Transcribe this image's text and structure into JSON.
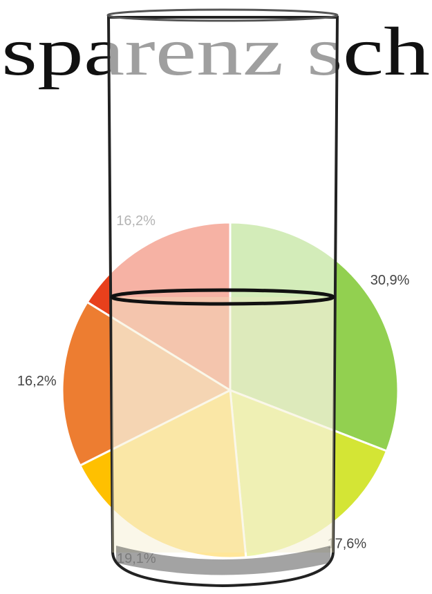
{
  "chart_data": {
    "type": "pie",
    "title": "sparenz sch",
    "values": [
      30.9,
      17.6,
      19.1,
      16.2,
      16.2
    ],
    "value_labels": [
      "30,9%",
      "17,6%",
      "19,1%",
      "16,2%",
      "16,2%"
    ],
    "colors": [
      "#92d050",
      "#d4e535",
      "#ffc000",
      "#ed7d31",
      "#e8401c"
    ]
  }
}
